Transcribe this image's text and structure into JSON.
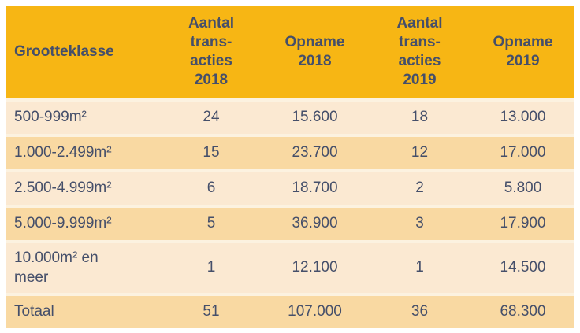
{
  "colors": {
    "header_bg": "#F7B614",
    "row_light": "#FBE9D2",
    "row_dark": "#F9D9A2",
    "separator": "#FCF2E0",
    "text": "#454F6A",
    "page_bg": "#FFFFFF"
  },
  "table": {
    "headers": {
      "col1": "Grootteklasse",
      "col2": "Aantal\ntrans-\nacties\n2018",
      "col3": "Opname\n2018",
      "col4": "Aantal\ntrans-\nacties\n2019",
      "col5": "Opname\n2019"
    },
    "rows": [
      {
        "grootteklasse": "500-999m²",
        "aantal_2018": "24",
        "opname_2018": "15.600",
        "aantal_2019": "18",
        "opname_2019": "13.000"
      },
      {
        "grootteklasse": "1.000-2.499m²",
        "aantal_2018": "15",
        "opname_2018": "23.700",
        "aantal_2019": "12",
        "opname_2019": "17.000"
      },
      {
        "grootteklasse": "2.500-4.999m²",
        "aantal_2018": "6",
        "opname_2018": "18.700",
        "aantal_2019": "2",
        "opname_2019": "5.800"
      },
      {
        "grootteklasse": "5.000-9.999m²",
        "aantal_2018": "5",
        "opname_2018": "36.900",
        "aantal_2019": "3",
        "opname_2019": "17.900"
      },
      {
        "grootteklasse": "10.000m² en\nmeer",
        "aantal_2018": "1",
        "opname_2018": "12.100",
        "aantal_2019": "1",
        "opname_2019": "14.500"
      },
      {
        "grootteklasse": "Totaal",
        "aantal_2018": "51",
        "opname_2018": "107.000",
        "aantal_2019": "36",
        "opname_2019": "68.300"
      }
    ]
  },
  "chart_data": {
    "type": "table",
    "columns": [
      "Grootteklasse",
      "Aantal transacties 2018",
      "Opname 2018",
      "Aantal transacties 2019",
      "Opname 2019"
    ],
    "rows": [
      [
        "500-999m²",
        24,
        15600,
        18,
        13000
      ],
      [
        "1.000-2.499m²",
        15,
        23700,
        12,
        17000
      ],
      [
        "2.500-4.999m²",
        6,
        18700,
        2,
        5800
      ],
      [
        "5.000-9.999m²",
        5,
        36900,
        3,
        17900
      ],
      [
        "10.000m² en meer",
        1,
        12100,
        1,
        14500
      ],
      [
        "Totaal",
        51,
        107000,
        36,
        68300
      ]
    ]
  }
}
